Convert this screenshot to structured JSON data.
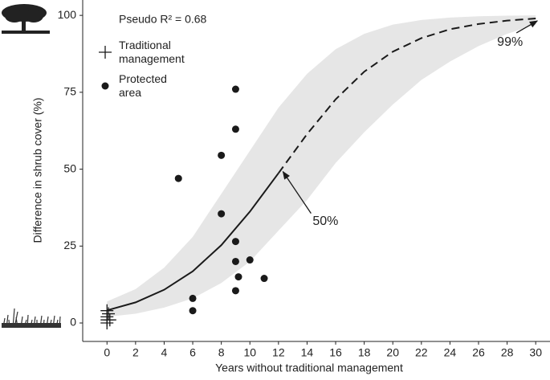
{
  "chart_data": {
    "type": "scatter",
    "x_label": "Years without traditional management",
    "y_label": "Difference in shrub cover (%)",
    "fit_label": "Pseudo R² = 0.68",
    "xlim": [
      -1.7,
      31
    ],
    "ylim": [
      -6,
      105
    ],
    "xticks": [
      0,
      2,
      4,
      6,
      8,
      10,
      12,
      14,
      16,
      18,
      20,
      22,
      24,
      26,
      28,
      30
    ],
    "yticks": [
      0,
      25,
      50,
      75,
      100
    ],
    "series": [
      {
        "name": "Traditional management",
        "marker": "plus",
        "color": "#1a1a1a",
        "x": [
          0,
          0,
          0,
          0.1,
          0.2,
          0
        ],
        "values": [
          0,
          1,
          2,
          3,
          1,
          4
        ]
      },
      {
        "name": "Protected area",
        "marker": "dot",
        "color": "#1a1a1a",
        "x": [
          5,
          6,
          6,
          8,
          8,
          9,
          9,
          9,
          9,
          9,
          9.2,
          10,
          11
        ],
        "values": [
          47,
          4,
          8,
          54.5,
          35.5,
          76,
          63,
          26.5,
          20,
          10.5,
          15,
          20.5,
          14.5
        ]
      }
    ],
    "fit": {
      "color": "#1a1a1a",
      "dash_from": 12,
      "x": [
        0,
        2,
        4,
        6,
        8,
        10,
        12,
        14,
        16,
        18,
        20,
        22,
        24,
        26,
        28,
        30
      ],
      "values": [
        4.1,
        6.7,
        10.8,
        16.8,
        25.3,
        36.2,
        48.7,
        61.4,
        72.7,
        81.7,
        88.2,
        92.6,
        95.5,
        97.2,
        98.3,
        99
      ],
      "lower": [
        2,
        3,
        5,
        8,
        13,
        20,
        30,
        40,
        52,
        62,
        71,
        79,
        85,
        90,
        94,
        97
      ],
      "upper": [
        7,
        11,
        18,
        28,
        42,
        56,
        70,
        81,
        89,
        94,
        97,
        98.5,
        99.3,
        99.7,
        99.9,
        100
      ],
      "band_color": "#e6e6e6"
    },
    "annotations": [
      {
        "text": "50%",
        "x": 12.2,
        "y": 50
      },
      {
        "text": "99%",
        "x": 30,
        "y": 99
      }
    ]
  }
}
